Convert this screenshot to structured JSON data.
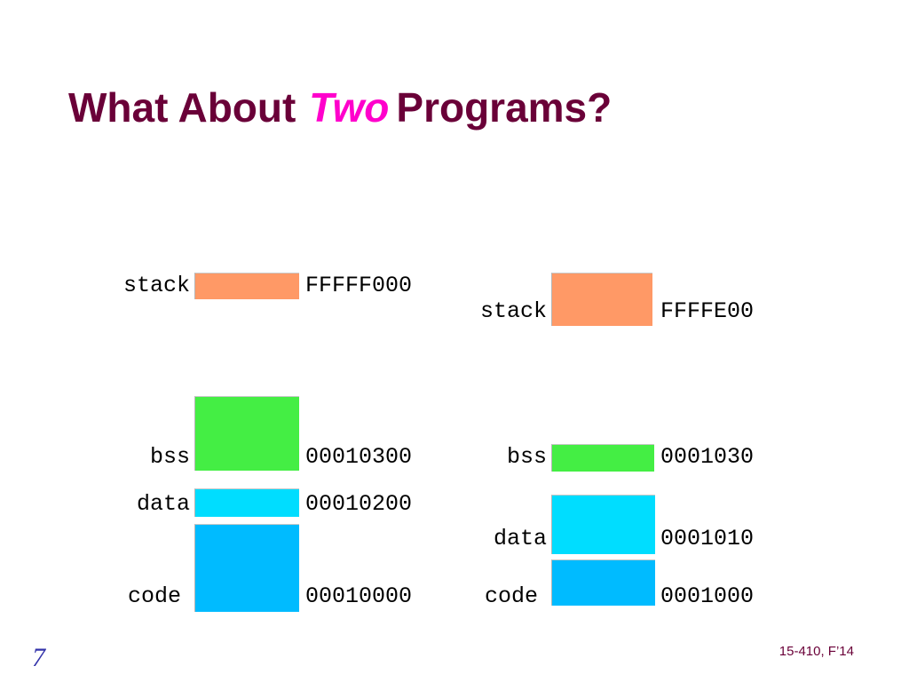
{
  "title": {
    "before": "What About",
    "emphasis": "Two",
    "after": "Programs?"
  },
  "left_program": {
    "segments": [
      {
        "name": "stack",
        "address": "FFFFF000",
        "color": "#ff9966"
      },
      {
        "name": "bss",
        "address": "00010300",
        "color": "#44ee44"
      },
      {
        "name": "data",
        "address": "00010200",
        "color": "#00ddff"
      },
      {
        "name": "code",
        "address": "00010000",
        "color": "#00bbff"
      }
    ]
  },
  "right_program": {
    "segments": [
      {
        "name": "stack",
        "address": "FFFFE00",
        "color": "#ff9966"
      },
      {
        "name": "bss",
        "address": "0001030",
        "color": "#44ee44"
      },
      {
        "name": "data",
        "address": "0001010",
        "color": "#00ddff"
      },
      {
        "name": "code",
        "address": "0001000",
        "color": "#00bbff"
      }
    ]
  },
  "footer": {
    "slide_number": "7",
    "course": "15-410, F’14"
  }
}
